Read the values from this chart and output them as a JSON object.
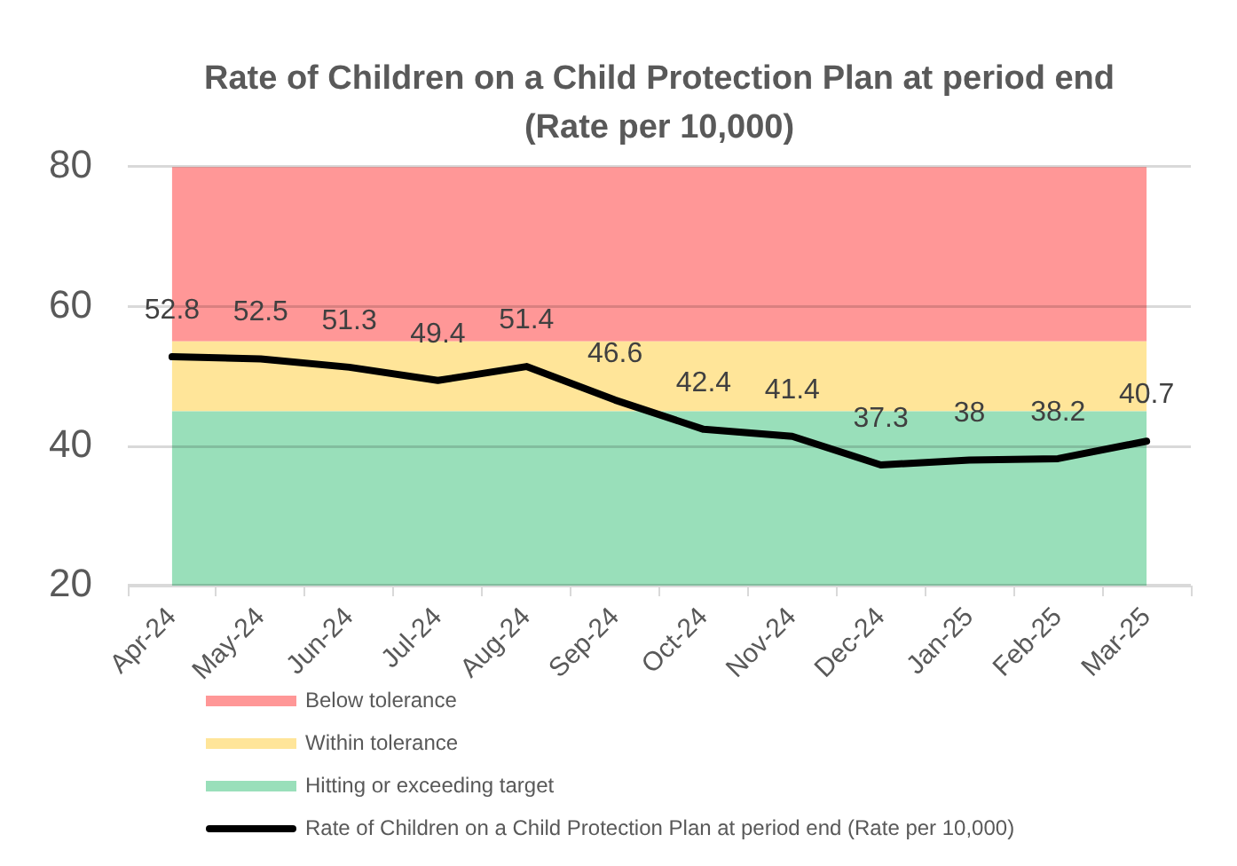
{
  "chart_data": {
    "type": "line",
    "title": "Rate of Children on a Child Protection Plan at period end\n(Rate per 10,000)",
    "categories": [
      "Apr-24",
      "May-24",
      "Jun-24",
      "Jul-24",
      "Aug-24",
      "Sep-24",
      "Oct-24",
      "Nov-24",
      "Dec-24",
      "Jan-25",
      "Feb-25",
      "Mar-25"
    ],
    "series": [
      {
        "name": "Rate of Children on a Child Protection Plan at period end (Rate per 10,000)",
        "color": "#000000",
        "values": [
          52.8,
          52.5,
          51.3,
          49.4,
          51.4,
          46.6,
          42.4,
          41.4,
          37.3,
          38,
          38.2,
          40.7
        ]
      }
    ],
    "ylim": [
      20,
      80
    ],
    "yticks": [
      20,
      40,
      60,
      80
    ],
    "grid": "y",
    "bands": [
      {
        "axis": "y",
        "from": 55,
        "to": 80,
        "label": "Below tolerance",
        "color": "#ff9797"
      },
      {
        "axis": "y",
        "from": 45,
        "to": 55,
        "label": "Within tolerance",
        "color": "#ffe599"
      },
      {
        "axis": "y",
        "from": 20,
        "to": 45,
        "label": "Hitting or exceeding target",
        "color": "#99dfba"
      }
    ],
    "data_labels": true,
    "legend": "bottom",
    "marker": "none",
    "line_style": "solid"
  }
}
